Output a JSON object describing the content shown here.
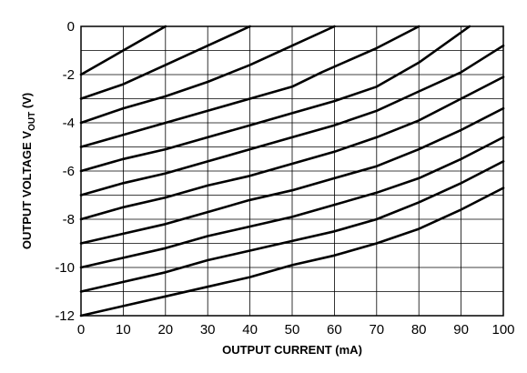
{
  "chart_data": {
    "type": "line",
    "title": "",
    "xlabel": "OUTPUT CURRENT (mA)",
    "ylabel_main": "OUTPUT VOLTAGE V",
    "ylabel_sub": "OUT",
    "ylabel_unit": " (V)",
    "xlim": [
      0,
      100
    ],
    "ylim": [
      -12,
      0
    ],
    "grid": true,
    "x_ticks": [
      "0",
      "10",
      "20",
      "30",
      "40",
      "50",
      "60",
      "70",
      "80",
      "90",
      "100"
    ],
    "y_ticks": [
      "0",
      "-2",
      "-4",
      "-6",
      "-8",
      "-10",
      "-12"
    ],
    "series": [
      {
        "points": [
          [
            0,
            -2.0
          ],
          [
            20,
            0.0
          ]
        ]
      },
      {
        "points": [
          [
            0,
            -3.0
          ],
          [
            10,
            -2.4
          ],
          [
            20,
            -1.6
          ],
          [
            30,
            -0.8
          ],
          [
            40,
            0.0
          ]
        ]
      },
      {
        "points": [
          [
            0,
            -4.0
          ],
          [
            10,
            -3.4
          ],
          [
            20,
            -2.9
          ],
          [
            30,
            -2.3
          ],
          [
            40,
            -1.6
          ],
          [
            50,
            -0.8
          ],
          [
            60,
            0.0
          ]
        ]
      },
      {
        "points": [
          [
            0,
            -5.0
          ],
          [
            10,
            -4.5
          ],
          [
            20,
            -4.0
          ],
          [
            30,
            -3.5
          ],
          [
            40,
            -3.0
          ],
          [
            50,
            -2.5
          ],
          [
            57,
            -1.9
          ],
          [
            70,
            -0.9
          ],
          [
            80,
            0.0
          ]
        ]
      },
      {
        "points": [
          [
            0,
            -6.0
          ],
          [
            10,
            -5.5
          ],
          [
            20,
            -5.1
          ],
          [
            30,
            -4.6
          ],
          [
            40,
            -4.1
          ],
          [
            50,
            -3.6
          ],
          [
            60,
            -3.1
          ],
          [
            70,
            -2.5
          ],
          [
            80,
            -1.5
          ],
          [
            92,
            0.0
          ]
        ]
      },
      {
        "points": [
          [
            0,
            -7.0
          ],
          [
            10,
            -6.5
          ],
          [
            20,
            -6.1
          ],
          [
            30,
            -5.6
          ],
          [
            40,
            -5.1
          ],
          [
            50,
            -4.6
          ],
          [
            60,
            -4.1
          ],
          [
            70,
            -3.5
          ],
          [
            80,
            -2.7
          ],
          [
            90,
            -1.9
          ],
          [
            100,
            -0.8
          ]
        ]
      },
      {
        "points": [
          [
            0,
            -8.0
          ],
          [
            10,
            -7.5
          ],
          [
            20,
            -7.1
          ],
          [
            30,
            -6.6
          ],
          [
            40,
            -6.2
          ],
          [
            50,
            -5.7
          ],
          [
            60,
            -5.2
          ],
          [
            70,
            -4.6
          ],
          [
            80,
            -3.9
          ],
          [
            90,
            -3.0
          ],
          [
            100,
            -2.1
          ]
        ]
      },
      {
        "points": [
          [
            0,
            -9.0
          ],
          [
            10,
            -8.6
          ],
          [
            20,
            -8.2
          ],
          [
            30,
            -7.7
          ],
          [
            40,
            -7.2
          ],
          [
            50,
            -6.8
          ],
          [
            60,
            -6.3
          ],
          [
            70,
            -5.8
          ],
          [
            80,
            -5.1
          ],
          [
            90,
            -4.3
          ],
          [
            100,
            -3.4
          ]
        ]
      },
      {
        "points": [
          [
            0,
            -10.0
          ],
          [
            10,
            -9.6
          ],
          [
            20,
            -9.2
          ],
          [
            30,
            -8.7
          ],
          [
            40,
            -8.3
          ],
          [
            50,
            -7.9
          ],
          [
            60,
            -7.4
          ],
          [
            70,
            -6.9
          ],
          [
            80,
            -6.3
          ],
          [
            90,
            -5.5
          ],
          [
            100,
            -4.6
          ]
        ]
      },
      {
        "points": [
          [
            0,
            -11.0
          ],
          [
            10,
            -10.6
          ],
          [
            20,
            -10.2
          ],
          [
            30,
            -9.7
          ],
          [
            40,
            -9.3
          ],
          [
            50,
            -8.9
          ],
          [
            60,
            -8.5
          ],
          [
            70,
            -8.0
          ],
          [
            80,
            -7.3
          ],
          [
            90,
            -6.5
          ],
          [
            100,
            -5.6
          ]
        ]
      },
      {
        "points": [
          [
            0,
            -12.0
          ],
          [
            10,
            -11.6
          ],
          [
            20,
            -11.2
          ],
          [
            30,
            -10.8
          ],
          [
            40,
            -10.4
          ],
          [
            50,
            -9.9
          ],
          [
            60,
            -9.5
          ],
          [
            70,
            -9.0
          ],
          [
            80,
            -8.4
          ],
          [
            90,
            -7.6
          ],
          [
            100,
            -6.7
          ]
        ]
      }
    ]
  }
}
